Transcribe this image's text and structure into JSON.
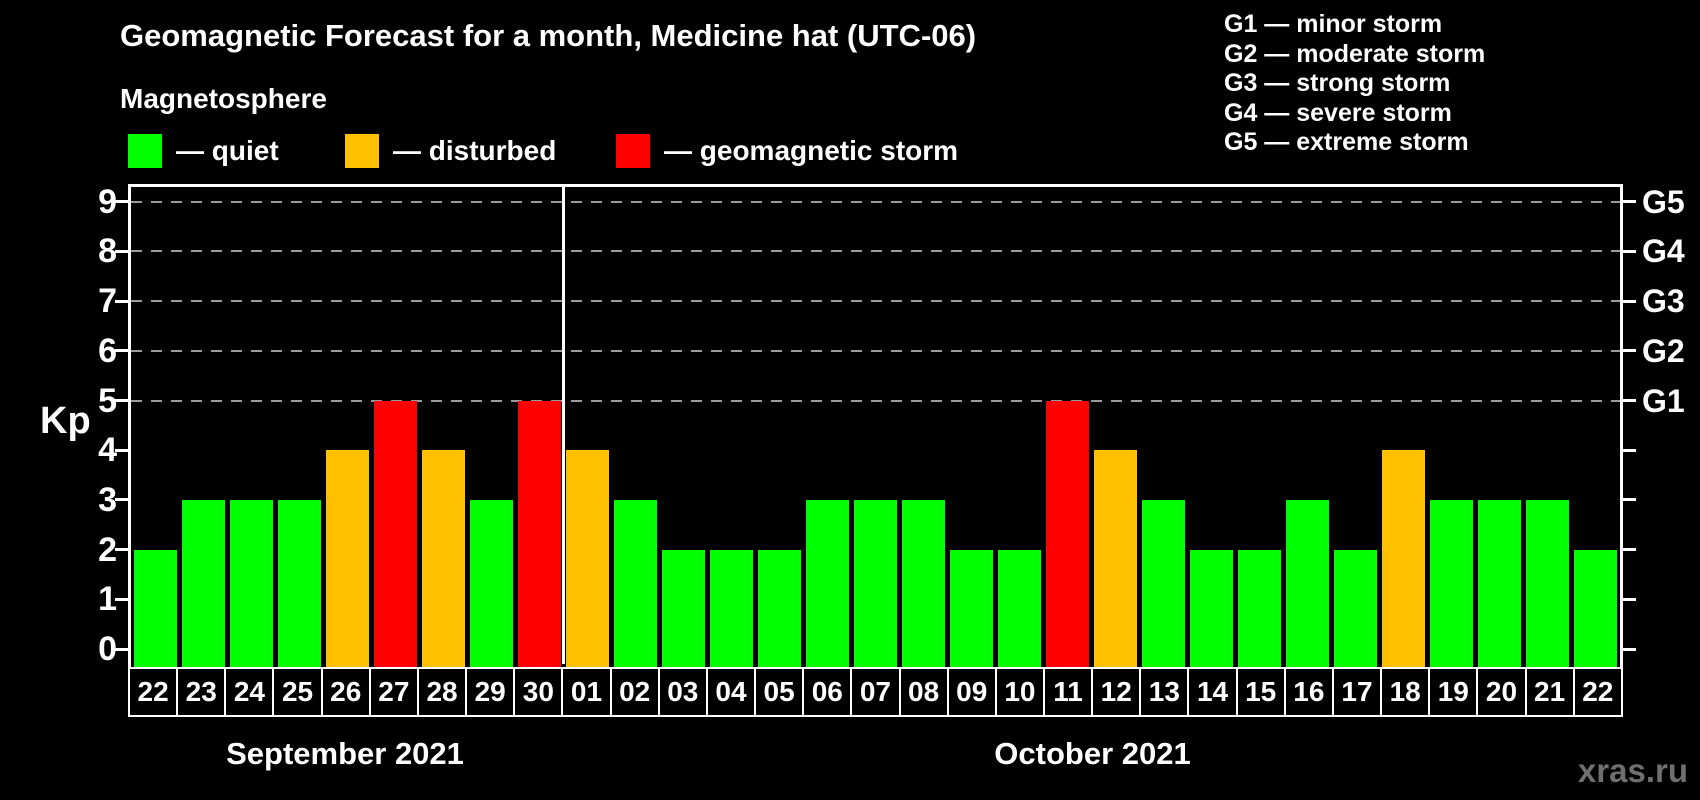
{
  "header": {
    "title": "Geomagnetic Forecast for a month, Medicine hat (UTC-06)",
    "subtitle": "Magnetosphere"
  },
  "legend": {
    "items": [
      {
        "status": "quiet",
        "label": "— quiet",
        "color": "#00FF00"
      },
      {
        "status": "disturbed",
        "label": "— disturbed",
        "color": "#FFC000"
      },
      {
        "status": "storm",
        "label": "— geomagnetic storm",
        "color": "#FF0000"
      }
    ]
  },
  "g_legend": {
    "items": [
      "G1 — minor storm",
      "G2 — moderate storm",
      "G3 — strong storm",
      "G4 — severe storm",
      "G5 — extreme storm"
    ]
  },
  "watermark": "xras.ru",
  "chart_data": {
    "type": "bar",
    "title": "Geomagnetic Forecast for a month, Medicine hat (UTC-06)",
    "ylabel": "Kp",
    "ylim": [
      0,
      9
    ],
    "y_ticks": [
      0,
      1,
      2,
      3,
      4,
      5,
      6,
      7,
      8,
      9
    ],
    "grid": "dashed horizontal lines at Kp 5-9 only",
    "legend_position": "top-left",
    "storm_scale": [
      {
        "kp": 5,
        "label": "G1"
      },
      {
        "kp": 6,
        "label": "G2"
      },
      {
        "kp": 7,
        "label": "G3"
      },
      {
        "kp": 8,
        "label": "G4"
      },
      {
        "kp": 9,
        "label": "G5"
      }
    ],
    "status_colors": {
      "quiet": "#00FF00",
      "disturbed": "#FFC000",
      "storm": "#FF0000"
    },
    "months": [
      {
        "label": "September 2021",
        "days": [
          {
            "day": "22",
            "kp": 2,
            "status": "quiet"
          },
          {
            "day": "23",
            "kp": 3,
            "status": "quiet"
          },
          {
            "day": "24",
            "kp": 3,
            "status": "quiet"
          },
          {
            "day": "25",
            "kp": 3,
            "status": "quiet"
          },
          {
            "day": "26",
            "kp": 4,
            "status": "disturbed"
          },
          {
            "day": "27",
            "kp": 5,
            "status": "storm"
          },
          {
            "day": "28",
            "kp": 4,
            "status": "disturbed"
          },
          {
            "day": "29",
            "kp": 3,
            "status": "quiet"
          },
          {
            "day": "30",
            "kp": 5,
            "status": "storm"
          }
        ]
      },
      {
        "label": "October 2021",
        "days": [
          {
            "day": "01",
            "kp": 4,
            "status": "disturbed"
          },
          {
            "day": "02",
            "kp": 3,
            "status": "quiet"
          },
          {
            "day": "03",
            "kp": 2,
            "status": "quiet"
          },
          {
            "day": "04",
            "kp": 2,
            "status": "quiet"
          },
          {
            "day": "05",
            "kp": 2,
            "status": "quiet"
          },
          {
            "day": "06",
            "kp": 3,
            "status": "quiet"
          },
          {
            "day": "07",
            "kp": 3,
            "status": "quiet"
          },
          {
            "day": "08",
            "kp": 3,
            "status": "quiet"
          },
          {
            "day": "09",
            "kp": 2,
            "status": "quiet"
          },
          {
            "day": "10",
            "kp": 2,
            "status": "quiet"
          },
          {
            "day": "11",
            "kp": 5,
            "status": "storm"
          },
          {
            "day": "12",
            "kp": 4,
            "status": "disturbed"
          },
          {
            "day": "13",
            "kp": 3,
            "status": "quiet"
          },
          {
            "day": "14",
            "kp": 2,
            "status": "quiet"
          },
          {
            "day": "15",
            "kp": 2,
            "status": "quiet"
          },
          {
            "day": "16",
            "kp": 3,
            "status": "quiet"
          },
          {
            "day": "17",
            "kp": 2,
            "status": "quiet"
          },
          {
            "day": "18",
            "kp": 4,
            "status": "disturbed"
          },
          {
            "day": "19",
            "kp": 3,
            "status": "quiet"
          },
          {
            "day": "20",
            "kp": 3,
            "status": "quiet"
          },
          {
            "day": "21",
            "kp": 3,
            "status": "quiet"
          },
          {
            "day": "22",
            "kp": 2,
            "status": "quiet"
          }
        ]
      }
    ]
  }
}
